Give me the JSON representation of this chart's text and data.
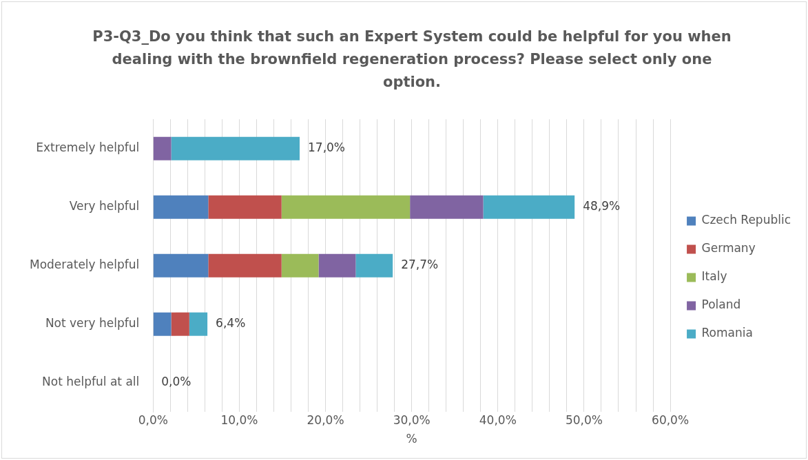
{
  "chart_data": {
    "type": "bar",
    "orientation": "horizontal",
    "stacked": true,
    "title": "P3-Q3_Do you think that such an Expert System could be helpful for you when dealing with the brownfield regeneration process? Please select only one option.",
    "xlabel": "%",
    "categories": [
      "Extremely helpful",
      "Very helpful",
      "Moderately helpful",
      "Not very helpful",
      "Not helpful at all"
    ],
    "series": [
      {
        "name": "Czech Republic",
        "color": "#4f81bd",
        "values": [
          0,
          6.4,
          6.4,
          2.1,
          0
        ]
      },
      {
        "name": "Germany",
        "color": "#c0504d",
        "values": [
          0,
          8.5,
          8.5,
          2.1,
          0
        ]
      },
      {
        "name": "Italy",
        "color": "#9bbb59",
        "values": [
          0,
          14.9,
          4.3,
          0,
          0
        ]
      },
      {
        "name": "Poland",
        "color": "#8064a2",
        "values": [
          2.1,
          8.5,
          4.3,
          0,
          0
        ]
      },
      {
        "name": "Romania",
        "color": "#4bacc6",
        "values": [
          14.9,
          10.6,
          4.3,
          2.1,
          0
        ]
      }
    ],
    "totals": [
      "17,0%",
      "48,9%",
      "27,7%",
      "6,4%",
      "0,0%"
    ],
    "xlim": [
      0,
      60
    ],
    "xticks": [
      {
        "value": 0,
        "label": "0,0%"
      },
      {
        "value": 2,
        "label": null
      },
      {
        "value": 4,
        "label": null
      },
      {
        "value": 6,
        "label": null
      },
      {
        "value": 8,
        "label": null
      },
      {
        "value": 10,
        "label": "10,0%"
      },
      {
        "value": 12,
        "label": null
      },
      {
        "value": 14,
        "label": null
      },
      {
        "value": 16,
        "label": null
      },
      {
        "value": 18,
        "label": null
      },
      {
        "value": 20,
        "label": "20,0%"
      },
      {
        "value": 22,
        "label": null
      },
      {
        "value": 24,
        "label": null
      },
      {
        "value": 26,
        "label": null
      },
      {
        "value": 28,
        "label": null
      },
      {
        "value": 30,
        "label": "30,0%"
      },
      {
        "value": 32,
        "label": null
      },
      {
        "value": 34,
        "label": null
      },
      {
        "value": 36,
        "label": null
      },
      {
        "value": 38,
        "label": null
      },
      {
        "value": 40,
        "label": "40,0%"
      },
      {
        "value": 42,
        "label": null
      },
      {
        "value": 44,
        "label": null
      },
      {
        "value": 46,
        "label": null
      },
      {
        "value": 48,
        "label": null
      },
      {
        "value": 50,
        "label": "50,0%"
      },
      {
        "value": 52,
        "label": null
      },
      {
        "value": 54,
        "label": null
      },
      {
        "value": 56,
        "label": null
      },
      {
        "value": 58,
        "label": null
      },
      {
        "value": 60,
        "label": "60,0%"
      }
    ],
    "grid": "x",
    "legend": "right"
  }
}
